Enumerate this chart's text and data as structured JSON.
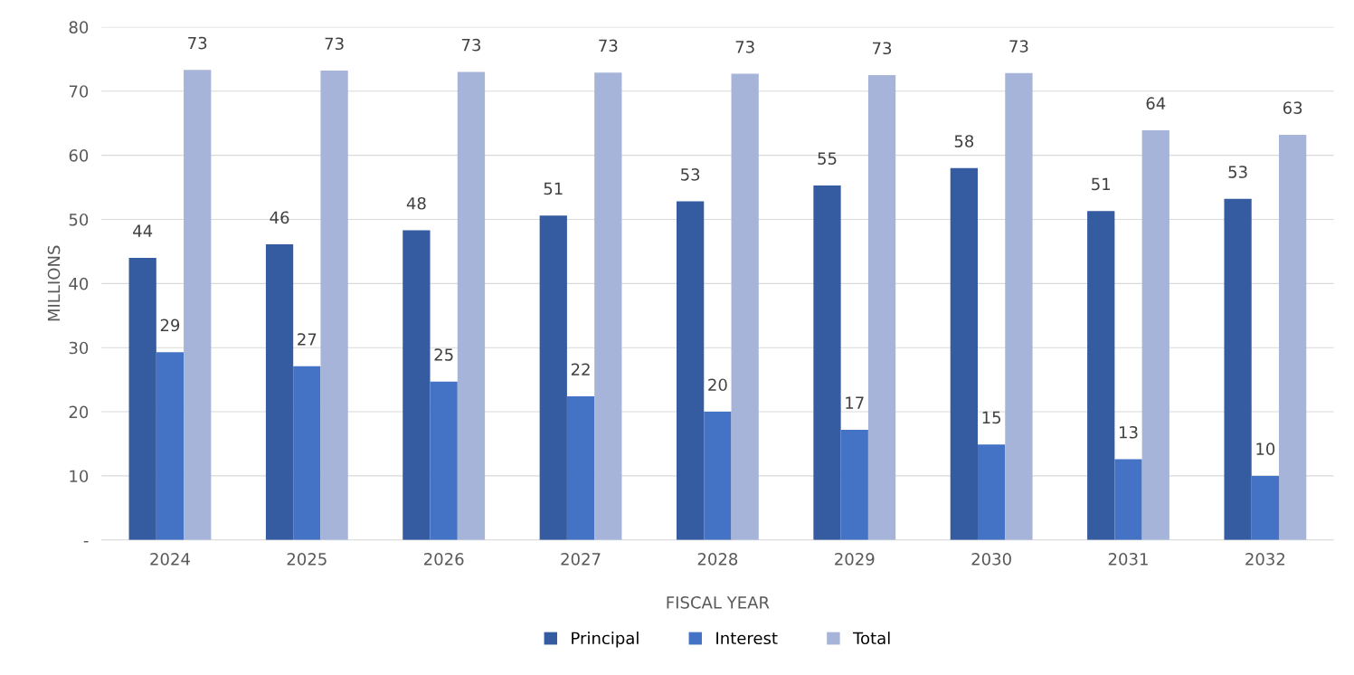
{
  "chart_data": {
    "type": "bar",
    "xlabel": "FISCAL YEAR",
    "ylabel": "MILLIONS",
    "categories": [
      "2024",
      "2025",
      "2026",
      "2027",
      "2028",
      "2029",
      "2030",
      "2031",
      "2032"
    ],
    "series": [
      {
        "name": "Principal",
        "color": "#355ca0",
        "values": [
          44.0,
          46.1,
          48.3,
          50.6,
          52.8,
          55.3,
          58.0,
          51.3,
          53.2
        ],
        "value_labels": [
          "44",
          "46",
          "48",
          "51",
          "53",
          "55",
          "58",
          "51",
          "53"
        ]
      },
      {
        "name": "Interest",
        "color": "#4472c4",
        "values": [
          29.3,
          27.1,
          24.7,
          22.4,
          20.0,
          17.2,
          14.9,
          12.6,
          10.0
        ],
        "value_labels": [
          "29",
          "27",
          "25",
          "22",
          "20",
          "17",
          "15",
          "13",
          "10"
        ]
      },
      {
        "name": "Total",
        "color": "#a7b4d9",
        "values": [
          73.3,
          73.2,
          73.0,
          72.9,
          72.7,
          72.5,
          72.8,
          63.9,
          63.2
        ],
        "value_labels": [
          "73",
          "73",
          "73",
          "73",
          "73",
          "73",
          "73",
          "64",
          "63"
        ]
      }
    ],
    "ylim": [
      0,
      80
    ],
    "yticks": [
      {
        "value": 0,
        "label": "-"
      },
      10,
      20,
      30,
      40,
      50,
      60,
      70,
      80
    ],
    "grid": "y",
    "legend": "bottom"
  }
}
